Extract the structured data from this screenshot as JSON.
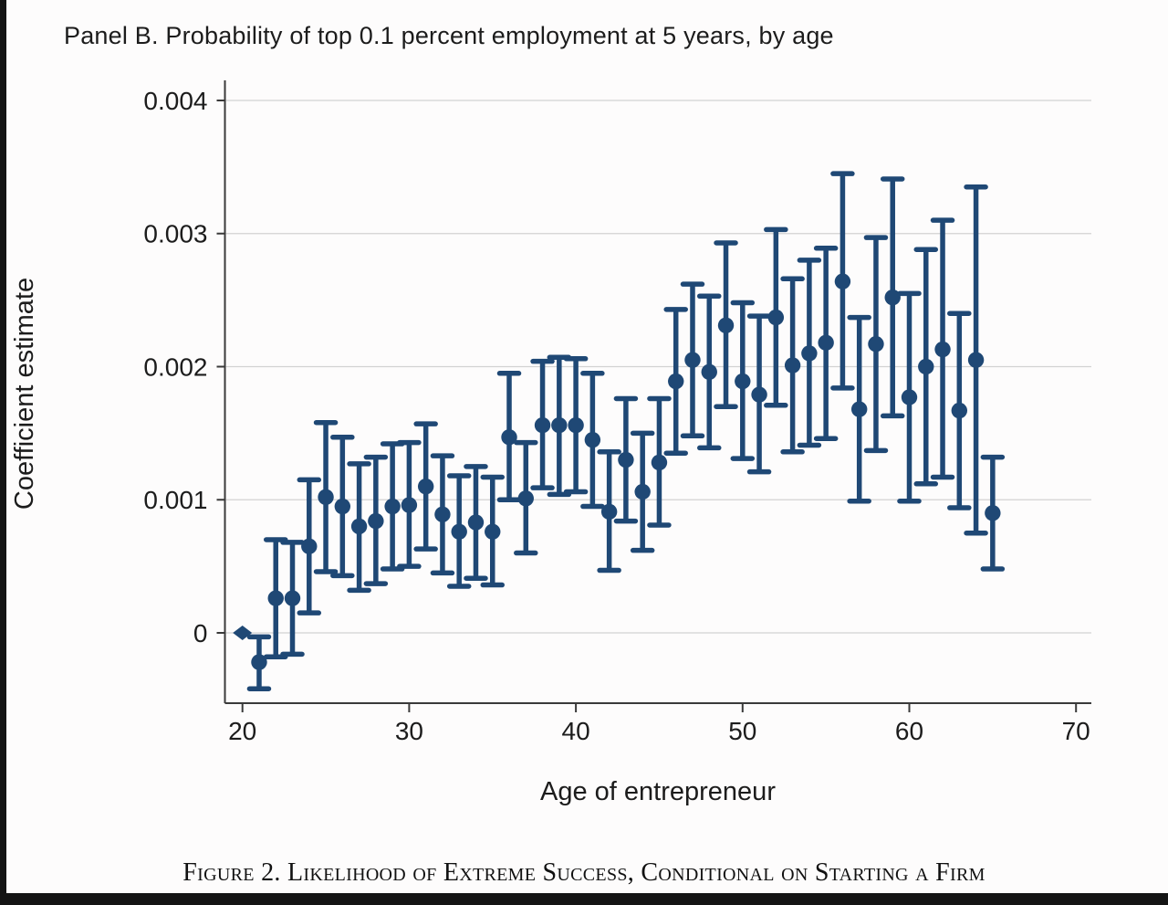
{
  "page": {
    "title": "Panel B. Probability of top 0.1 percent employment at 5 years, by age",
    "caption": "Figure 2. Likelihood of Extreme Success, Conditional on Starting a Firm"
  },
  "colors": {
    "marker": "#1f4875",
    "axis": "#3a3a3a",
    "gridline": "#d2d2d2",
    "text": "#1c1c1c",
    "background": "#fdfcfc",
    "letterbox": "#141414"
  },
  "chart_data": {
    "type": "scatter",
    "subtype": "coefficient-plot-with-error-bars",
    "title": "Panel B. Probability of top 0.1 percent employment at 5 years, by age",
    "xlabel": "Age of entrepreneur",
    "ylabel": "Coefficient estimate",
    "x_ticks": [
      20,
      30,
      40,
      50,
      60,
      70
    ],
    "x_tick_labels": [
      "20",
      "30",
      "40",
      "50",
      "60",
      "70"
    ],
    "y_ticks": [
      0,
      0.001,
      0.002,
      0.003,
      0.004
    ],
    "y_tick_labels": [
      "0",
      "0.001",
      "0.002",
      "0.003",
      "0.004"
    ],
    "xlim": [
      18.9,
      71
    ],
    "ylim": [
      -0.00053,
      0.004
    ],
    "grid": "horizontal-at-y-ticks",
    "legend": "none",
    "reference_category": {
      "age": 20,
      "value": 0,
      "marker": "diamond"
    },
    "points": [
      {
        "age": 20,
        "est": 0.0,
        "lo": null,
        "hi": null,
        "marker": "diamond"
      },
      {
        "age": 21,
        "est": -0.00022,
        "lo": -0.00042,
        "hi": -3e-05,
        "marker": "circle"
      },
      {
        "age": 22,
        "est": 0.00026,
        "lo": -0.00018,
        "hi": 0.0007,
        "marker": "circle"
      },
      {
        "age": 23,
        "est": 0.00026,
        "lo": -0.00016,
        "hi": 0.00068,
        "marker": "circle"
      },
      {
        "age": 24,
        "est": 0.00065,
        "lo": 0.00015,
        "hi": 0.00115,
        "marker": "circle"
      },
      {
        "age": 25,
        "est": 0.00102,
        "lo": 0.00046,
        "hi": 0.00158,
        "marker": "circle"
      },
      {
        "age": 26,
        "est": 0.00095,
        "lo": 0.00043,
        "hi": 0.00147,
        "marker": "circle"
      },
      {
        "age": 27,
        "est": 0.0008,
        "lo": 0.00032,
        "hi": 0.00127,
        "marker": "circle"
      },
      {
        "age": 28,
        "est": 0.00084,
        "lo": 0.00037,
        "hi": 0.00132,
        "marker": "circle"
      },
      {
        "age": 29,
        "est": 0.00095,
        "lo": 0.00048,
        "hi": 0.00142,
        "marker": "circle"
      },
      {
        "age": 30,
        "est": 0.00096,
        "lo": 0.0005,
        "hi": 0.00143,
        "marker": "circle"
      },
      {
        "age": 31,
        "est": 0.0011,
        "lo": 0.00063,
        "hi": 0.00157,
        "marker": "circle"
      },
      {
        "age": 32,
        "est": 0.00089,
        "lo": 0.00045,
        "hi": 0.00133,
        "marker": "circle"
      },
      {
        "age": 33,
        "est": 0.00076,
        "lo": 0.00035,
        "hi": 0.00118,
        "marker": "circle"
      },
      {
        "age": 34,
        "est": 0.00083,
        "lo": 0.00041,
        "hi": 0.00125,
        "marker": "circle"
      },
      {
        "age": 35,
        "est": 0.00076,
        "lo": 0.00036,
        "hi": 0.00117,
        "marker": "circle"
      },
      {
        "age": 36,
        "est": 0.00147,
        "lo": 0.001,
        "hi": 0.00195,
        "marker": "circle"
      },
      {
        "age": 37,
        "est": 0.00101,
        "lo": 0.0006,
        "hi": 0.00143,
        "marker": "circle"
      },
      {
        "age": 38,
        "est": 0.00156,
        "lo": 0.00109,
        "hi": 0.00204,
        "marker": "circle"
      },
      {
        "age": 39,
        "est": 0.00156,
        "lo": 0.00104,
        "hi": 0.00207,
        "marker": "circle"
      },
      {
        "age": 40,
        "est": 0.00156,
        "lo": 0.00106,
        "hi": 0.00206,
        "marker": "circle"
      },
      {
        "age": 41,
        "est": 0.00145,
        "lo": 0.00095,
        "hi": 0.00195,
        "marker": "circle"
      },
      {
        "age": 42,
        "est": 0.00091,
        "lo": 0.00047,
        "hi": 0.00136,
        "marker": "circle"
      },
      {
        "age": 43,
        "est": 0.0013,
        "lo": 0.00084,
        "hi": 0.00176,
        "marker": "circle"
      },
      {
        "age": 44,
        "est": 0.00106,
        "lo": 0.00062,
        "hi": 0.0015,
        "marker": "circle"
      },
      {
        "age": 45,
        "est": 0.00128,
        "lo": 0.00081,
        "hi": 0.00176,
        "marker": "circle"
      },
      {
        "age": 46,
        "est": 0.00189,
        "lo": 0.00135,
        "hi": 0.00243,
        "marker": "circle"
      },
      {
        "age": 47,
        "est": 0.00205,
        "lo": 0.00148,
        "hi": 0.00262,
        "marker": "circle"
      },
      {
        "age": 48,
        "est": 0.00196,
        "lo": 0.00139,
        "hi": 0.00253,
        "marker": "circle"
      },
      {
        "age": 49,
        "est": 0.00231,
        "lo": 0.0017,
        "hi": 0.00293,
        "marker": "circle"
      },
      {
        "age": 50,
        "est": 0.00189,
        "lo": 0.00131,
        "hi": 0.00248,
        "marker": "circle"
      },
      {
        "age": 51,
        "est": 0.00179,
        "lo": 0.00121,
        "hi": 0.00238,
        "marker": "circle"
      },
      {
        "age": 52,
        "est": 0.00237,
        "lo": 0.00171,
        "hi": 0.00303,
        "marker": "circle"
      },
      {
        "age": 53,
        "est": 0.00201,
        "lo": 0.00136,
        "hi": 0.00266,
        "marker": "circle"
      },
      {
        "age": 54,
        "est": 0.0021,
        "lo": 0.00141,
        "hi": 0.0028,
        "marker": "circle"
      },
      {
        "age": 55,
        "est": 0.00218,
        "lo": 0.00146,
        "hi": 0.00289,
        "marker": "circle"
      },
      {
        "age": 56,
        "est": 0.00264,
        "lo": 0.00184,
        "hi": 0.00345,
        "marker": "circle"
      },
      {
        "age": 57,
        "est": 0.00168,
        "lo": 0.00099,
        "hi": 0.00237,
        "marker": "circle"
      },
      {
        "age": 58,
        "est": 0.00217,
        "lo": 0.00137,
        "hi": 0.00297,
        "marker": "circle"
      },
      {
        "age": 59,
        "est": 0.00252,
        "lo": 0.00163,
        "hi": 0.00341,
        "marker": "circle"
      },
      {
        "age": 60,
        "est": 0.00177,
        "lo": 0.00099,
        "hi": 0.00255,
        "marker": "circle"
      },
      {
        "age": 61,
        "est": 0.002,
        "lo": 0.00112,
        "hi": 0.00288,
        "marker": "circle"
      },
      {
        "age": 62,
        "est": 0.00213,
        "lo": 0.00117,
        "hi": 0.0031,
        "marker": "circle"
      },
      {
        "age": 63,
        "est": 0.00167,
        "lo": 0.00094,
        "hi": 0.0024,
        "marker": "circle"
      },
      {
        "age": 64,
        "est": 0.00205,
        "lo": 0.00075,
        "hi": 0.00335,
        "marker": "circle"
      },
      {
        "age": 65,
        "est": 0.0009,
        "lo": 0.00048,
        "hi": 0.00132,
        "marker": "circle"
      }
    ]
  }
}
